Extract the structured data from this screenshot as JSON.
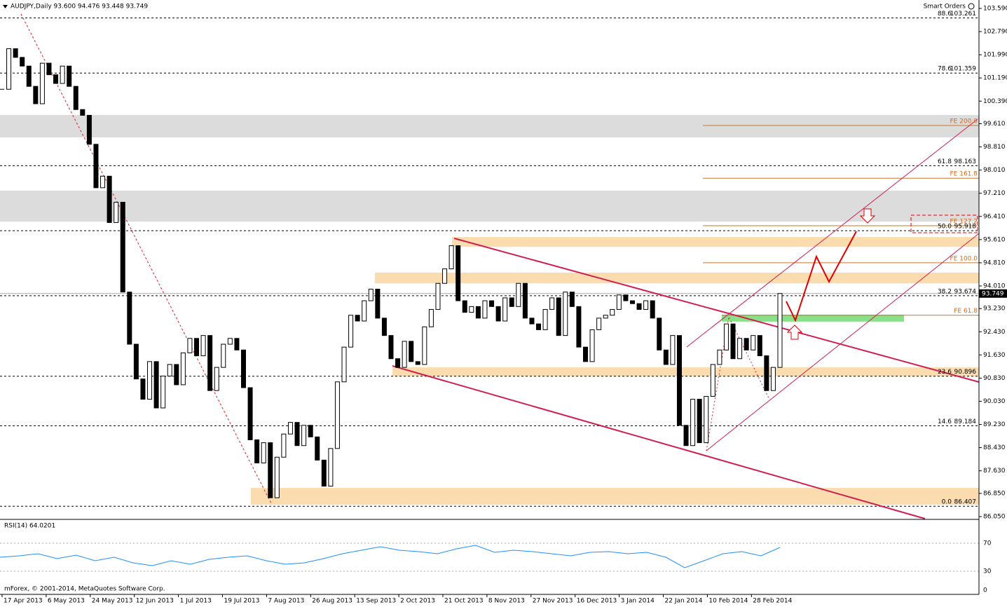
{
  "chart_data": {
    "type": "candlestick",
    "title": "AUDJPY,Daily  93.600 94.476 93.448 93.749",
    "smart_orders": "Smart Orders",
    "footer": "mForex, © 2001-2014, MetaQuotes Software Corp.",
    "closes": [
      100.8,
      102.2,
      101.9,
      101.6,
      100.9,
      100.3,
      101.7,
      101.3,
      101.0,
      101.6,
      100.9,
      100.1,
      99.9,
      98.9,
      97.4,
      97.8,
      96.2,
      96.9,
      93.8,
      92.0,
      90.8,
      90.1,
      91.4,
      89.8,
      90.9,
      91.3,
      90.6,
      91.7,
      92.2,
      91.6,
      92.3,
      90.4,
      91.2,
      92.0,
      92.2,
      91.8,
      90.5,
      88.7,
      87.9,
      88.6,
      86.7,
      88.1,
      88.9,
      89.3,
      88.5,
      89.2,
      88.8,
      88.0,
      87.1,
      88.4,
      90.7,
      91.9,
      93.0,
      92.8,
      93.5,
      93.9,
      92.9,
      92.3,
      91.5,
      91.2,
      92.1,
      91.4,
      91.3,
      92.6,
      93.2,
      94.1,
      94.6,
      95.4,
      93.5,
      93.1,
      93.3,
      92.9,
      93.5,
      93.3,
      92.8,
      93.6,
      93.3,
      94.1,
      92.9,
      92.7,
      92.5,
      93.2,
      93.6,
      92.3,
      93.8,
      93.3,
      91.9,
      91.4,
      92.5,
      92.9,
      93.0,
      93.2,
      93.7,
      93.5,
      93.4,
      93.2,
      93.5,
      92.9,
      91.8,
      91.3,
      92.3,
      89.2,
      88.5,
      90.1,
      88.6,
      90.2,
      91.3,
      91.8,
      92.7,
      91.5,
      92.2,
      91.8,
      92.3,
      91.6,
      90.4,
      91.2,
      93.749
    ],
    "current_price": {
      "value": 93.749,
      "label": "93.749"
    },
    "x_labels": [
      "17 Apr 2013",
      "6 May 2013",
      "24 May 2013",
      "12 Jun 2013",
      "1 Jul 2013",
      "19 Jul 2013",
      "7 Aug 2013",
      "26 Aug 2013",
      "13 Sep 2013",
      "2 Oct 2013",
      "21 Oct 2013",
      "8 Nov 2013",
      "27 Nov 2013",
      "16 Dec 2013",
      "3 Jan 2014",
      "22 Jan 2014",
      "10 Feb 2014",
      "28 Feb 2014"
    ],
    "ylim": [
      86.05,
      103.59
    ],
    "yticks": [
      {
        "value": 103.59,
        "label": "103.590"
      },
      {
        "value": 102.79,
        "label": "102.790"
      },
      {
        "value": 101.99,
        "label": "101.990"
      },
      {
        "value": 101.19,
        "label": "101.190"
      },
      {
        "value": 100.39,
        "label": "100.390"
      },
      {
        "value": 99.61,
        "label": "99.610"
      },
      {
        "value": 98.81,
        "label": "98.810"
      },
      {
        "value": 98.01,
        "label": "98.010"
      },
      {
        "value": 97.21,
        "label": "97.210"
      },
      {
        "value": 96.41,
        "label": "96.410"
      },
      {
        "value": 95.61,
        "label": "95.610"
      },
      {
        "value": 94.81,
        "label": "94.810"
      },
      {
        "value": 94.01,
        "label": "94.010"
      },
      {
        "value": 93.23,
        "label": "93.230"
      },
      {
        "value": 92.43,
        "label": "92.430"
      },
      {
        "value": 91.63,
        "label": "91.630"
      },
      {
        "value": 90.83,
        "label": "90.830"
      },
      {
        "value": 90.03,
        "label": "90.030"
      },
      {
        "value": 89.23,
        "label": "89.230"
      },
      {
        "value": 88.43,
        "label": "88.430"
      },
      {
        "value": 87.63,
        "label": "87.630"
      },
      {
        "value": 86.85,
        "label": "86.850"
      },
      {
        "value": 86.05,
        "label": "86.050"
      }
    ],
    "fib_levels": [
      {
        "label": "88.6",
        "value": 103.261
      },
      {
        "label": "78.6",
        "value": 101.359
      },
      {
        "label": "61.8",
        "value": 98.163
      },
      {
        "label": "50.0",
        "value": 95.918
      },
      {
        "label": "38.2",
        "value": 93.674
      },
      {
        "label": "23.6",
        "value": 90.896
      },
      {
        "label": "14.6",
        "value": 89.184
      },
      {
        "label": "0.0",
        "value": 86.407
      }
    ],
    "fe_levels": [
      {
        "label": "FE 200.0",
        "value": 99.55
      },
      {
        "label": "FE 161.8",
        "value": 97.73
      },
      {
        "label": "FE 127.2",
        "value": 96.09
      },
      {
        "label": "FE 100.0",
        "value": 94.81
      },
      {
        "label": "FE 61.8",
        "value": 93.0
      }
    ],
    "zones": [
      {
        "kind": "gray",
        "from": 99.91,
        "to": 99.14
      },
      {
        "kind": "gray",
        "from": 97.3,
        "to": 96.23
      },
      {
        "kind": "orange",
        "from": 95.7,
        "to": 95.36
      },
      {
        "kind": "orange",
        "from": 94.47,
        "to": 94.1
      },
      {
        "kind": "orange",
        "from": 91.2,
        "to": 90.89
      },
      {
        "kind": "orange",
        "from": 87.04,
        "to": 86.46
      },
      {
        "kind": "green",
        "from": 93.02,
        "to": 92.78
      }
    ],
    "rsi": {
      "title": "RSI(14) 64.0201",
      "ylim": [
        0,
        100
      ],
      "yticks": [
        70,
        30,
        0
      ],
      "color": "#1e90ff",
      "values": [
        50,
        52,
        55,
        48,
        53,
        45,
        50,
        42,
        38,
        45,
        40,
        47,
        50,
        52,
        45,
        40,
        42,
        48,
        55,
        60,
        65,
        60,
        58,
        55,
        62,
        67,
        57,
        60,
        58,
        55,
        52,
        57,
        58,
        55,
        57,
        50,
        35,
        45,
        55,
        58,
        52,
        64
      ]
    }
  }
}
